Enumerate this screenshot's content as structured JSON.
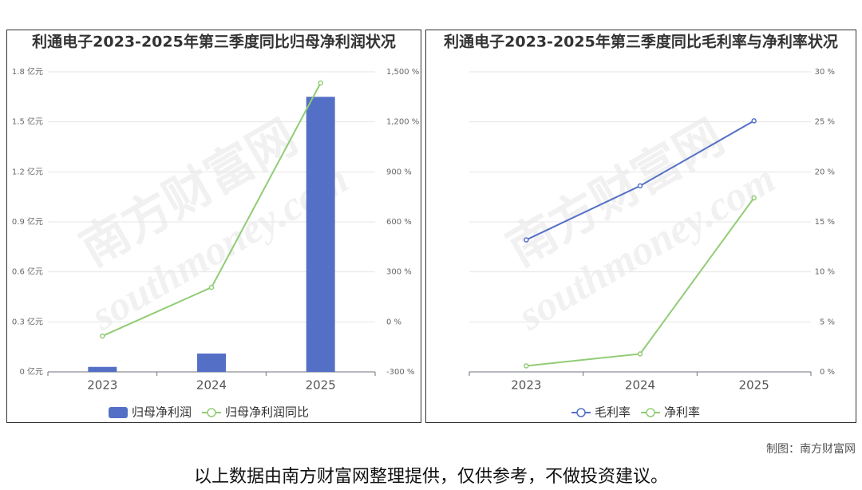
{
  "chart_data": [
    {
      "type": "bar",
      "title": "利通电子2023-2025年第三季度同比归母净利润状况",
      "categories": [
        "2023",
        "2024",
        "2025"
      ],
      "series": [
        {
          "name": "归母净利润",
          "type": "bar",
          "color": "#5470c6",
          "values": [
            0.03,
            0.11,
            1.65
          ]
        },
        {
          "name": "归母净利润同比",
          "type": "line",
          "axis": "y2",
          "color": "#91cc75",
          "values": [
            -85,
            207,
            1433
          ]
        }
      ],
      "ylim": [
        0,
        1.8
      ],
      "yticks": [
        {
          "value": 0,
          "label": "0 亿元"
        },
        {
          "value": 0.3,
          "label": "0.3 亿元"
        },
        {
          "value": 0.6,
          "label": "0.6 亿元"
        },
        {
          "value": 0.9,
          "label": "0.9 亿元"
        },
        {
          "value": 1.2,
          "label": "1.2 亿元"
        },
        {
          "value": 1.5,
          "label": "1.5 亿元"
        },
        {
          "value": 1.8,
          "label": "1.8 亿元"
        }
      ],
      "y2lim": [
        -300,
        1500
      ],
      "y2ticks": [
        {
          "value": -300,
          "label": "-300 %"
        },
        {
          "value": 0,
          "label": "0 %"
        },
        {
          "value": 300,
          "label": "300 %"
        },
        {
          "value": 600,
          "label": "600 %"
        },
        {
          "value": 900,
          "label": "900 %"
        },
        {
          "value": 1200,
          "label": "1,200 %"
        },
        {
          "value": 1500,
          "label": "1,500 %"
        }
      ],
      "grid": true
    },
    {
      "type": "line",
      "title": "利通电子2023-2025年第三季度同比毛利率与净利率状况",
      "categories": [
        "2023",
        "2024",
        "2025"
      ],
      "series": [
        {
          "name": "毛利率",
          "color": "#5470c6",
          "values": [
            13.2,
            18.6,
            25.1
          ]
        },
        {
          "name": "净利率",
          "color": "#91cc75",
          "values": [
            0.6,
            1.8,
            17.4
          ]
        }
      ],
      "ylim": [
        0,
        30
      ],
      "yticks": [
        {
          "value": 0,
          "label": "0 %"
        },
        {
          "value": 5,
          "label": "5 %"
        },
        {
          "value": 10,
          "label": "10 %"
        },
        {
          "value": 15,
          "label": "15 %"
        },
        {
          "value": 20,
          "label": "20 %"
        },
        {
          "value": 25,
          "label": "25 %"
        },
        {
          "value": 30,
          "label": "30 %"
        }
      ],
      "y_axis_side": "right",
      "grid": true
    }
  ],
  "watermark": {
    "name": "南方财富网",
    "url": "southmoney.com"
  },
  "credit": "制图：南方财富网",
  "disclaimer": "以上数据由南方财富网整理提供，仅供参考，不做投资建议。"
}
